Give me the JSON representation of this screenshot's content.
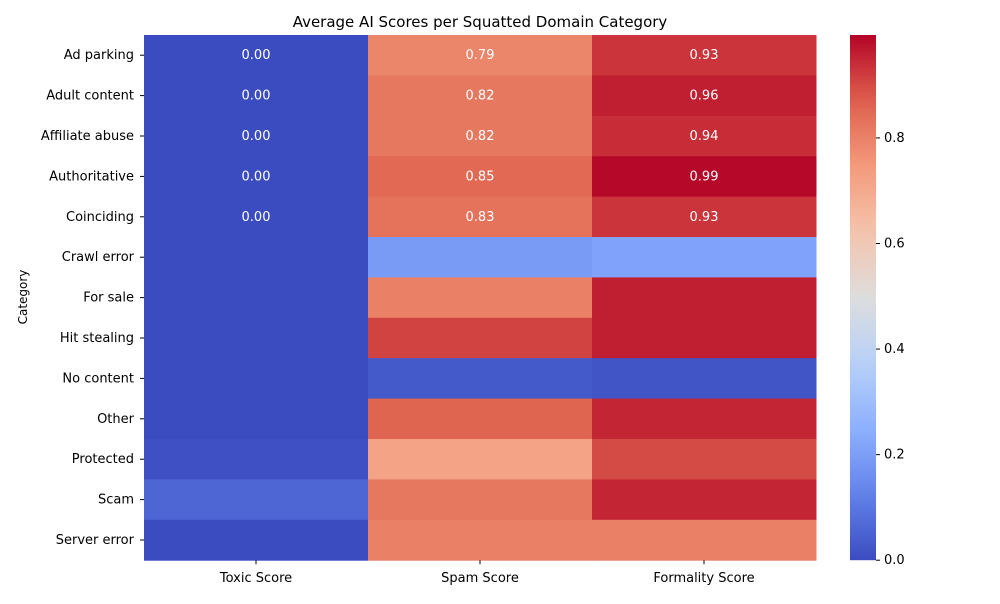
{
  "chart_data": {
    "type": "heatmap",
    "title": "Average AI Scores per Squatted Domain Category",
    "xlabel": "",
    "ylabel": "Category",
    "columns": [
      "Toxic Score",
      "Spam Score",
      "Formality Score"
    ],
    "rows": [
      "Ad parking",
      "Adult content",
      "Affiliate abuse",
      "Authoritative",
      "Coinciding",
      "Crawl error",
      "For sale",
      "Hit stealing",
      "No content",
      "Other",
      "Protected",
      "Scam",
      "Server error"
    ],
    "values": [
      [
        0.0,
        0.79,
        0.93
      ],
      [
        0.0,
        0.82,
        0.96
      ],
      [
        0.0,
        0.82,
        0.94
      ],
      [
        0.0,
        0.85,
        0.99
      ],
      [
        0.0,
        0.83,
        0.93
      ],
      [
        0.0,
        0.19,
        0.21
      ],
      [
        0.0,
        0.8,
        0.96
      ],
      [
        0.0,
        0.91,
        0.96
      ],
      [
        0.0,
        0.03,
        0.02
      ],
      [
        0.0,
        0.86,
        0.95
      ],
      [
        0.01,
        0.72,
        0.9
      ],
      [
        0.06,
        0.82,
        0.95
      ],
      [
        0.0,
        0.8,
        0.8
      ]
    ],
    "annotated_rows": 5,
    "annotation_format": "2 decimals",
    "colormap": "coolwarm",
    "colorbar": {
      "ticks": [
        "0.0",
        "0.2",
        "0.4",
        "0.6",
        "0.8"
      ],
      "range": [
        0,
        1
      ]
    },
    "colors": {
      "low": "#3b4cc0",
      "mid": "#dddddd",
      "high": "#b40426"
    }
  }
}
